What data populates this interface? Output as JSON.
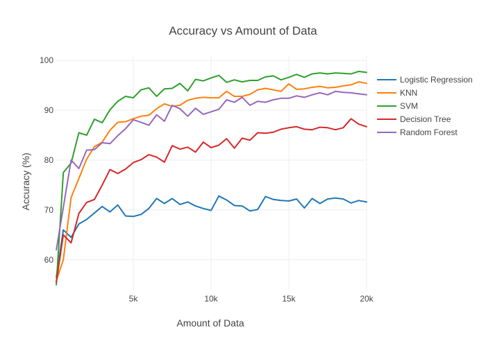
{
  "chart_data": {
    "type": "line",
    "title": "Accuracy vs Amount of Data",
    "xlabel": "Amount of Data",
    "ylabel": "Accuracy (%)",
    "xlim": [
      0,
      20000
    ],
    "ylim": [
      54,
      101
    ],
    "grid": true,
    "legend_position": "right",
    "x_ticks": [
      {
        "value": 5000,
        "label": "5k"
      },
      {
        "value": 10000,
        "label": "10k"
      },
      {
        "value": 15000,
        "label": "15k"
      },
      {
        "value": 20000,
        "label": "20k"
      }
    ],
    "y_ticks": [
      {
        "value": 60,
        "label": "60"
      },
      {
        "value": 70,
        "label": "70"
      },
      {
        "value": 80,
        "label": "80"
      },
      {
        "value": 90,
        "label": "90"
      },
      {
        "value": 100,
        "label": "100"
      }
    ],
    "x": [
      50,
      500,
      1000,
      1500,
      2000,
      2500,
      3000,
      3500,
      4000,
      4500,
      5000,
      5500,
      6000,
      6500,
      7000,
      7500,
      8000,
      8500,
      9000,
      9500,
      10000,
      10500,
      11000,
      11500,
      12000,
      12500,
      13000,
      13500,
      14000,
      14500,
      15000,
      15500,
      16000,
      16500,
      17000,
      17500,
      18000,
      18500,
      19000,
      19500,
      20000
    ],
    "series": [
      {
        "name": "Logistic Regression",
        "color": "#1f77b4",
        "values": [
          56.5,
          66.0,
          64.5,
          67.2,
          68.1,
          69.4,
          70.7,
          69.6,
          71.0,
          68.8,
          68.7,
          69.1,
          70.3,
          72.3,
          71.3,
          72.3,
          71.1,
          71.6,
          70.8,
          70.3,
          69.9,
          72.8,
          72.0,
          70.9,
          70.8,
          69.8,
          70.1,
          72.7,
          72.1,
          71.9,
          71.8,
          72.2,
          70.4,
          72.3,
          71.3,
          72.2,
          72.4,
          72.2,
          71.4,
          71.9,
          71.6
        ]
      },
      {
        "name": "KNN",
        "color": "#ff7f0e",
        "values": [
          55.8,
          60.0,
          72.5,
          76.3,
          80.2,
          82.7,
          83.6,
          86.0,
          87.6,
          87.7,
          88.3,
          88.8,
          89.0,
          90.3,
          91.3,
          90.8,
          91.0,
          92.0,
          92.4,
          92.6,
          92.5,
          92.5,
          93.8,
          92.8,
          92.8,
          93.2,
          94.1,
          94.4,
          94.1,
          93.8,
          95.3,
          94.2,
          94.3,
          94.6,
          94.8,
          94.5,
          94.6,
          94.9,
          95.1,
          95.7,
          95.4
        ]
      },
      {
        "name": "SVM",
        "color": "#2ca02c",
        "values": [
          55.0,
          77.5,
          79.4,
          85.5,
          85.0,
          88.2,
          87.5,
          90.1,
          91.8,
          92.8,
          92.5,
          94.1,
          94.5,
          92.8,
          94.3,
          94.4,
          95.4,
          93.9,
          96.2,
          95.9,
          96.5,
          97.0,
          95.6,
          96.1,
          95.7,
          96.0,
          96.0,
          96.7,
          96.9,
          96.1,
          96.6,
          97.2,
          96.6,
          97.3,
          97.5,
          97.3,
          97.5,
          97.4,
          97.3,
          97.8,
          97.6
        ]
      },
      {
        "name": "Decision Tree",
        "color": "#d62728",
        "values": [
          55.5,
          65.0,
          63.4,
          69.3,
          71.5,
          72.1,
          75.0,
          78.1,
          77.3,
          78.2,
          79.5,
          80.1,
          81.1,
          80.6,
          79.6,
          82.9,
          82.2,
          82.6,
          81.6,
          83.6,
          82.5,
          83.0,
          84.3,
          82.4,
          84.4,
          84.0,
          85.5,
          85.4,
          85.6,
          86.2,
          86.5,
          86.7,
          86.2,
          86.1,
          86.6,
          86.5,
          86.1,
          86.5,
          88.3,
          87.2,
          86.7
        ]
      },
      {
        "name": "Random Forest",
        "color": "#9467bd",
        "values": [
          62.0,
          70.5,
          80.0,
          78.3,
          82.0,
          82.1,
          83.5,
          83.3,
          84.9,
          86.3,
          88.1,
          87.6,
          87.0,
          89.1,
          87.8,
          91.0,
          90.3,
          88.8,
          90.4,
          89.2,
          89.7,
          90.2,
          92.1,
          91.6,
          92.6,
          91.0,
          91.8,
          91.6,
          92.1,
          92.4,
          92.4,
          92.9,
          92.6,
          93.1,
          93.5,
          93.1,
          93.8,
          93.6,
          93.5,
          93.3,
          93.1
        ]
      }
    ]
  }
}
